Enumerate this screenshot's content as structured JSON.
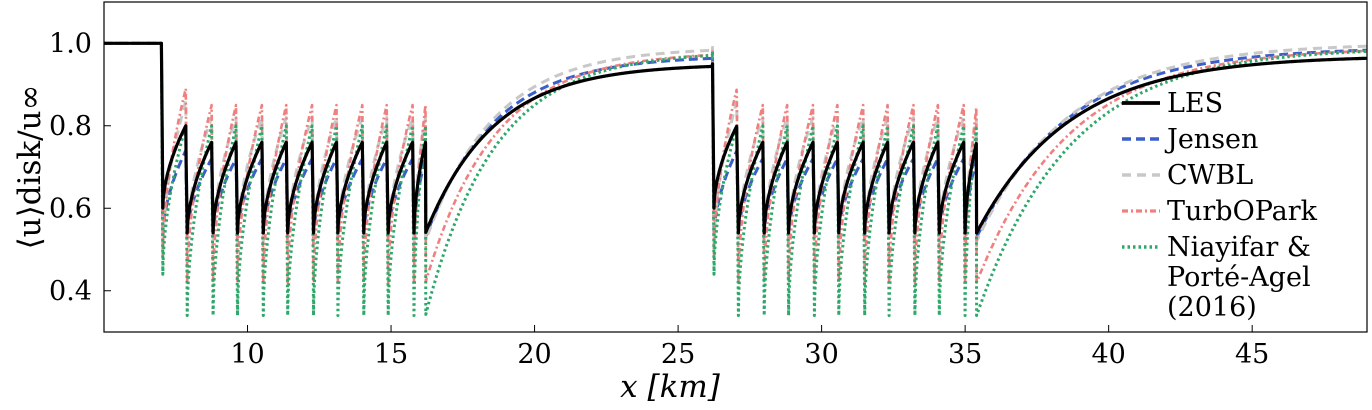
{
  "chart_data": {
    "type": "line",
    "xlabel": "x [km]",
    "ylabel": "⟨u⟩disk/u∞",
    "xlim": [
      5,
      49
    ],
    "ylim": [
      0.3,
      1.1
    ],
    "x_ticks": [
      10,
      15,
      20,
      25,
      30,
      35,
      40,
      45
    ],
    "y_ticks": [
      0.4,
      0.6,
      0.8,
      1.0
    ],
    "x_tick_labels": [
      "10",
      "15",
      "20",
      "25",
      "30",
      "35",
      "40",
      "45"
    ],
    "y_tick_labels": [
      "0.4",
      "0.6",
      "0.8",
      "1.0"
    ],
    "grid": false,
    "legend_position": "right",
    "farms": [
      {
        "turbine_x": [
          7.0,
          7.85,
          8.75,
          9.6,
          10.5,
          11.35,
          12.25,
          13.1,
          14.0,
          14.85,
          15.75
        ],
        "end_x": 16.2
      },
      {
        "turbine_x": [
          26.2,
          27.05,
          27.95,
          28.8,
          29.7,
          30.55,
          31.45,
          32.3,
          33.2,
          34.05,
          34.95
        ],
        "end_x": 35.4
      }
    ],
    "series": [
      {
        "name": "LES",
        "color": "#000000",
        "dash": "",
        "width": 3.2,
        "pre": 1.0,
        "dip_first": 0.6,
        "dip": 0.54,
        "peak_first": 0.8,
        "peak": 0.76,
        "recovery_end_1": 0.95,
        "recovery_end_2": 0.97
      },
      {
        "name": "Jensen",
        "color": "#3b5fc8",
        "dash": "9 5",
        "width": 3.0,
        "pre": 1.0,
        "dip_first": 0.53,
        "dip": 0.53,
        "peak_first": 0.74,
        "peak": 0.72,
        "recovery_end_1": 0.97,
        "recovery_end_2": 0.99
      },
      {
        "name": "CWBL",
        "color": "#c8c8c8",
        "dash": "9 6",
        "width": 3.0,
        "pre": 1.0,
        "dip_first": 0.5,
        "dip": 0.52,
        "peak_first": 0.86,
        "peak": 0.82,
        "recovery_end_1": 0.99,
        "recovery_end_2": 1.0
      },
      {
        "name": "TurbOPark",
        "color": "#f08080",
        "dash": "6 3 2 3",
        "width": 2.6,
        "pre": 1.0,
        "dip_first": 0.48,
        "dip": 0.42,
        "peak_first": 0.89,
        "peak": 0.85,
        "recovery_end_1": 0.98,
        "recovery_end_2": 0.99
      },
      {
        "name": "Niayifar &\nPorté-Agel\n(2016)",
        "color": "#2ea86a",
        "dash": "2.5 3",
        "width": 3.0,
        "pre": 1.0,
        "dip_first": 0.44,
        "dip": 0.34,
        "peak_first": 0.8,
        "peak": 0.8,
        "recovery_end_1": 0.98,
        "recovery_end_2": 0.99
      }
    ]
  }
}
